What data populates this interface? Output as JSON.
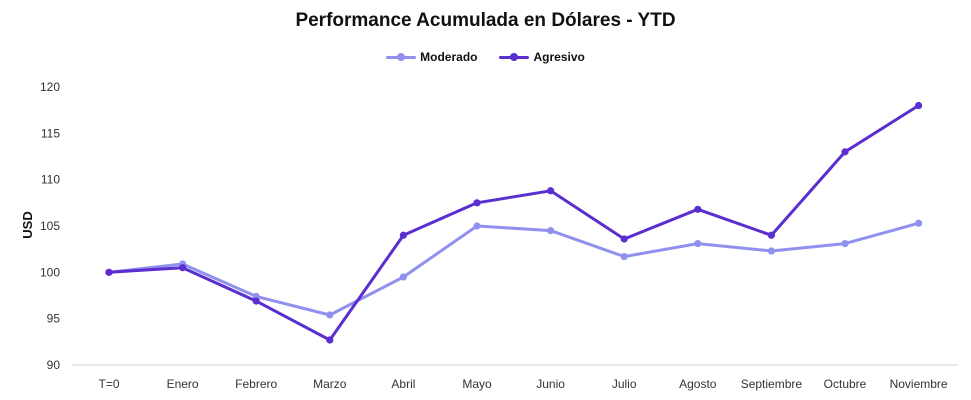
{
  "chart_data": {
    "type": "line",
    "title": "Performance Acumulada en Dólares - YTD",
    "xlabel": "",
    "ylabel": "USD",
    "categories": [
      "T=0",
      "Enero",
      "Febrero",
      "Marzo",
      "Abril",
      "Mayo",
      "Junio",
      "Julio",
      "Agosto",
      "Septiembre",
      "Octubre",
      "Noviembre"
    ],
    "ylim": [
      90,
      120
    ],
    "yticks": [
      90,
      95,
      100,
      105,
      110,
      115,
      120
    ],
    "grid": false,
    "legend_position": "top-center",
    "series": [
      {
        "name": "Moderado",
        "color": "#9090ee",
        "values": [
          100.0,
          100.9,
          97.4,
          95.4,
          99.5,
          105.0,
          104.5,
          101.7,
          103.1,
          102.3,
          103.1,
          105.3
        ]
      },
      {
        "name": "Agresivo",
        "color": "#5a2ecf",
        "values": [
          100.0,
          100.5,
          96.9,
          92.7,
          104.0,
          107.5,
          108.8,
          103.6,
          106.8,
          104.0,
          113.0,
          118.0
        ]
      }
    ]
  }
}
